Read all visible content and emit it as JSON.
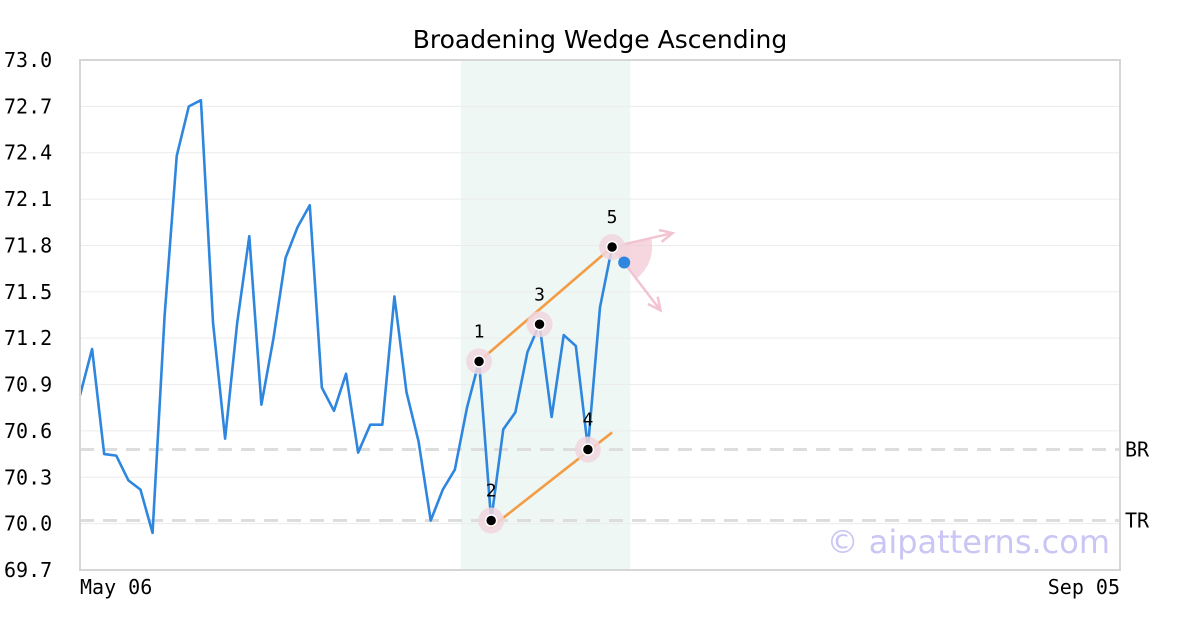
{
  "chart_data": {
    "type": "line",
    "title": "Broadening Wedge Ascending",
    "ylim": [
      69.7,
      73.0
    ],
    "yticks": [
      "73.0",
      "72.7",
      "72.4",
      "72.1",
      "71.8",
      "71.5",
      "71.2",
      "70.9",
      "70.6",
      "70.3",
      "70.0",
      "69.7"
    ],
    "xtick_labels": [
      "May 06",
      "Sep 05"
    ],
    "n_days": 86,
    "grid": "horizontal",
    "series": [
      {
        "color": "#2e86de",
        "values": [
          70.83,
          71.13,
          70.45,
          70.44,
          70.28,
          70.22,
          69.94,
          71.35,
          72.38,
          72.7,
          72.74,
          71.3,
          70.55,
          71.3,
          71.86,
          70.77,
          71.2,
          71.72,
          71.92,
          72.06,
          70.88,
          70.73,
          70.97,
          70.46,
          70.64,
          70.64,
          71.47,
          70.85,
          70.53,
          70.02,
          70.22,
          70.35,
          70.75,
          71.05,
          70.02,
          70.61,
          70.72,
          71.11,
          71.29,
          70.69,
          71.22,
          71.15,
          70.49,
          71.4,
          71.79
        ]
      }
    ],
    "current_point": {
      "index": 45,
      "value": 71.69,
      "color": "#2e86de"
    },
    "highlight_range": {
      "from": 31.5,
      "to": 45.5,
      "color": "#eef7f3"
    },
    "pattern_points": [
      {
        "label": "1",
        "index": 33,
        "value": 71.05
      },
      {
        "label": "2",
        "index": 34,
        "value": 70.02
      },
      {
        "label": "3",
        "index": 38,
        "value": 71.29
      },
      {
        "label": "4",
        "index": 42,
        "value": 70.48
      },
      {
        "label": "5",
        "index": 44,
        "value": 71.79
      }
    ],
    "trend_lines": [
      {
        "color": "#f39c45",
        "from": {
          "index": 33,
          "value": 71.05
        },
        "to": {
          "index": 44,
          "value": 71.79
        }
      },
      {
        "color": "#f39c45",
        "from": {
          "index": 33.9,
          "value": 69.97
        },
        "to": {
          "index": 44,
          "value": 70.59
        }
      }
    ],
    "reference_lines": [
      {
        "label": "BR",
        "value": 70.48
      },
      {
        "label": "TR",
        "value": 70.02
      }
    ],
    "projection": {
      "origin": {
        "index": 44,
        "value": 71.79
      },
      "up_target": {
        "index": 49,
        "value": 71.88
      },
      "down_target": {
        "index": 48,
        "value": 71.38
      },
      "color": "#f2c4d2"
    },
    "watermark": "© aipatterns.com"
  }
}
